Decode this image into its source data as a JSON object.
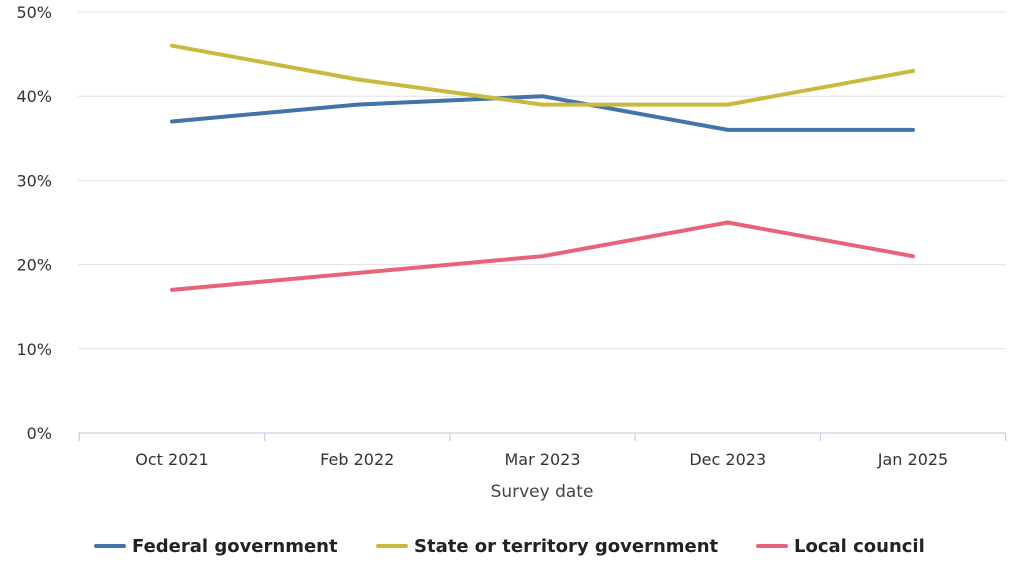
{
  "chart_data": {
    "type": "line",
    "title": "",
    "xlabel": "Survey date",
    "ylabel": "",
    "categories": [
      "Oct 2021",
      "Feb 2022",
      "Mar 2023",
      "Dec 2023",
      "Jan 2025"
    ],
    "ylim": [
      0,
      50
    ],
    "yticks": [
      0,
      10,
      20,
      30,
      40,
      50
    ],
    "ytick_labels": [
      "0%",
      "10%",
      "20%",
      "30%",
      "40%",
      "50%"
    ],
    "grid": true,
    "legend_position": "bottom",
    "series": [
      {
        "name": "Federal government",
        "color": "#4373a8",
        "values": [
          37,
          39,
          40,
          36,
          36
        ]
      },
      {
        "name": "State or territory government",
        "color": "#c9b93f",
        "values": [
          46,
          42,
          39,
          39,
          43
        ]
      },
      {
        "name": "Local council",
        "color": "#e8637a",
        "values": [
          17,
          19,
          21,
          25,
          21
        ]
      }
    ]
  }
}
